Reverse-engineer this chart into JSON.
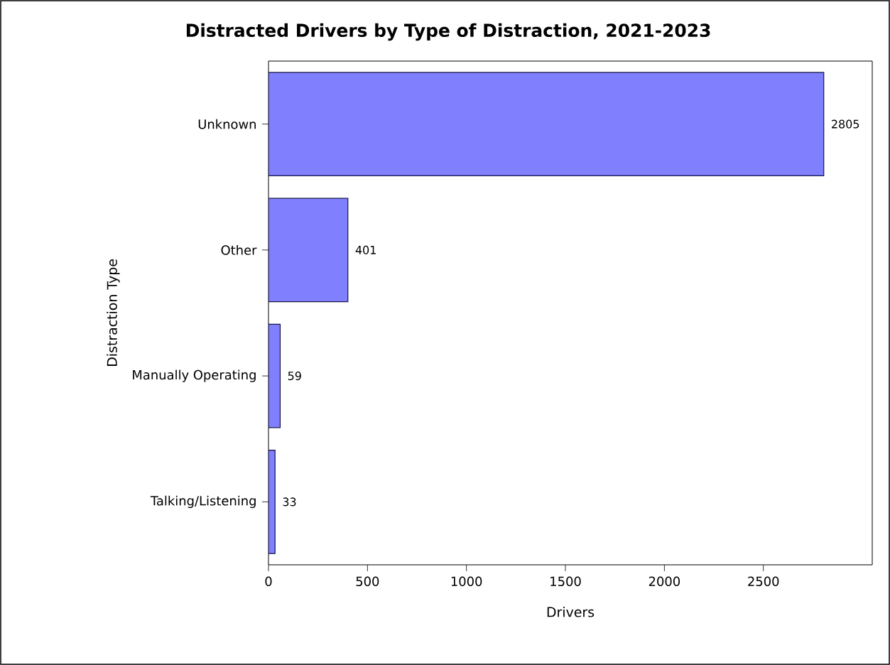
{
  "chart_data": {
    "type": "bar",
    "orientation": "horizontal",
    "title": "Distracted Drivers by Type of Distraction, 2021-2023",
    "xlabel": "Drivers",
    "ylabel": "Distraction Type",
    "categories": [
      "Unknown",
      "Other",
      "Manually Operating",
      "Talking/Listening"
    ],
    "values": [
      2805,
      401,
      59,
      33
    ],
    "color": "#8080ff",
    "xlim": [
      0,
      3050
    ],
    "xticks": [
      0,
      500,
      1000,
      1500,
      2000,
      2500
    ],
    "data_labels": true
  }
}
